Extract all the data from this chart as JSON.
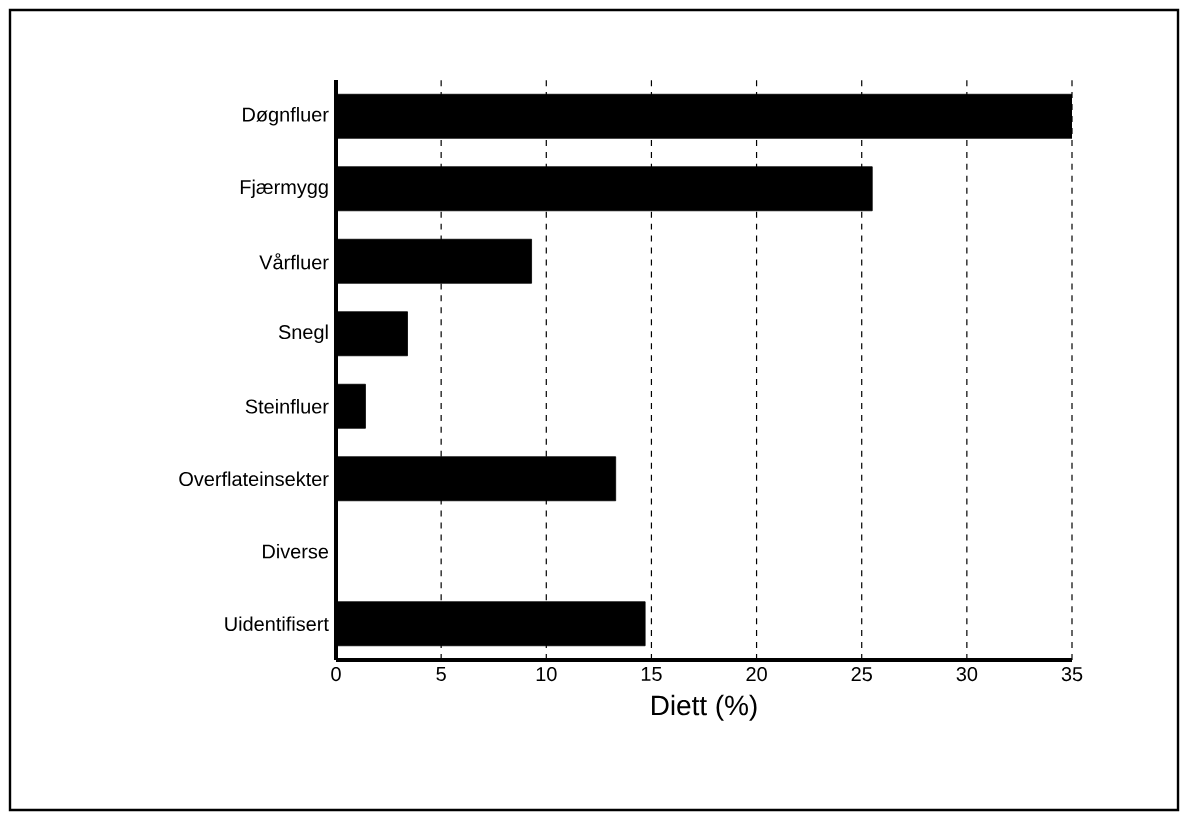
{
  "chart_data": {
    "type": "bar",
    "orientation": "horizontal",
    "xlabel": "Diett (%)",
    "categories": [
      "Døgnfluer",
      "Fjærmygg",
      "Vårfluer",
      "Snegl",
      "Steinfluer",
      "Overflateinsekter",
      "Diverse",
      "Uidentifisert"
    ],
    "values": [
      35,
      25.5,
      9.3,
      3.4,
      1.4,
      13.3,
      0,
      14.7
    ],
    "color": "#000000",
    "xlim": [
      0,
      35
    ],
    "xticks": [
      0,
      5,
      10,
      15,
      20,
      25,
      30,
      35
    ],
    "grid": "x"
  }
}
